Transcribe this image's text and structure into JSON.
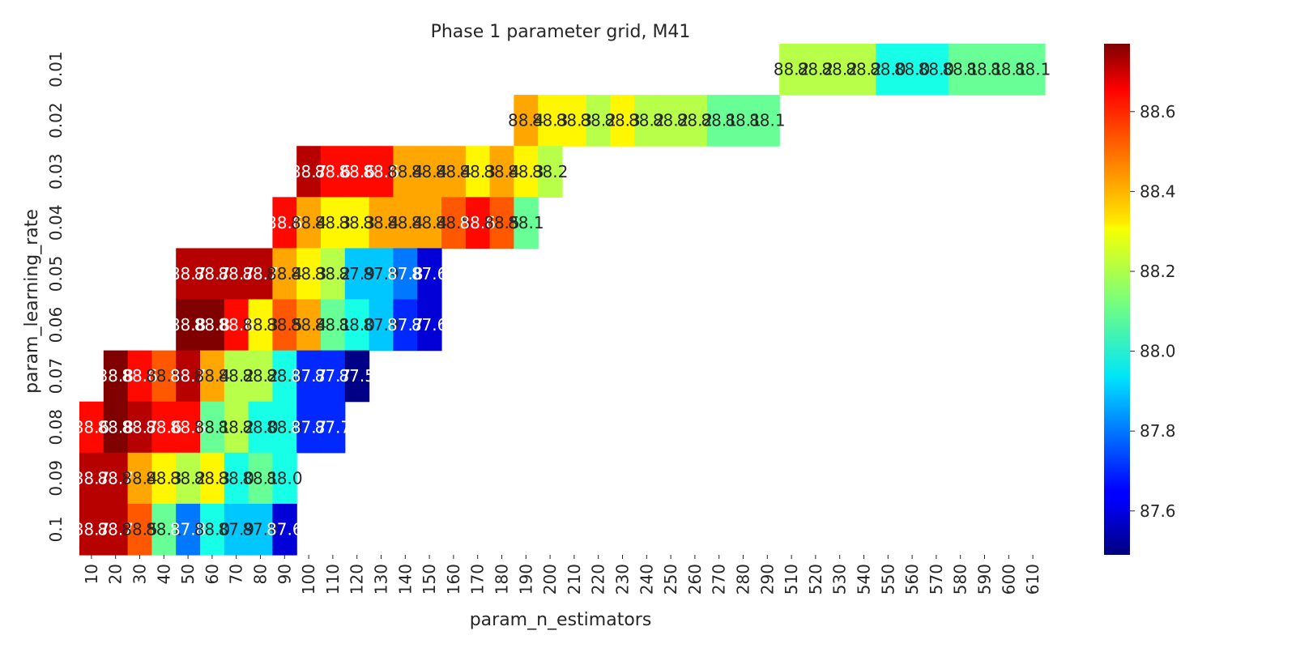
{
  "chart_data": {
    "type": "heatmap",
    "title": "Phase 1 parameter grid, M41",
    "xlabel": "param_n_estimators",
    "ylabel": "param_learning_rate",
    "x_categories": [
      "10",
      "20",
      "30",
      "40",
      "50",
      "60",
      "70",
      "80",
      "90",
      "100",
      "110",
      "120",
      "130",
      "140",
      "150",
      "160",
      "170",
      "180",
      "190",
      "200",
      "210",
      "220",
      "230",
      "240",
      "250",
      "260",
      "270",
      "280",
      "290",
      "510",
      "520",
      "530",
      "540",
      "550",
      "560",
      "570",
      "580",
      "590",
      "600",
      "610"
    ],
    "y_categories": [
      "0.01",
      "0.02",
      "0.03",
      "0.04",
      "0.05",
      "0.06",
      "0.07",
      "0.08",
      "0.09",
      "0.1"
    ],
    "colormap": "jet",
    "vmin": 87.49,
    "vmax": 88.77,
    "colorbar_ticks": [
      87.6,
      87.8,
      88.0,
      88.2,
      88.4,
      88.6
    ],
    "colorbar_tick_labels": [
      "87.6",
      "87.8",
      "88.0",
      "88.2",
      "88.4",
      "88.6"
    ],
    "values": [
      [
        null,
        null,
        null,
        null,
        null,
        null,
        null,
        null,
        null,
        null,
        null,
        null,
        null,
        null,
        null,
        null,
        null,
        null,
        null,
        null,
        null,
        null,
        null,
        null,
        null,
        null,
        null,
        null,
        null,
        88.2,
        88.2,
        88.2,
        88.2,
        88.0,
        88.0,
        88.0,
        88.1,
        88.1,
        88.1,
        88.1
      ],
      [
        null,
        null,
        null,
        null,
        null,
        null,
        null,
        null,
        null,
        null,
        null,
        null,
        null,
        null,
        null,
        null,
        null,
        null,
        88.4,
        88.3,
        88.3,
        88.2,
        88.3,
        88.2,
        88.2,
        88.2,
        88.1,
        88.1,
        88.1,
        null,
        null,
        null,
        null,
        null,
        null,
        null,
        null,
        null,
        null,
        null
      ],
      [
        null,
        null,
        null,
        null,
        null,
        null,
        null,
        null,
        null,
        88.7,
        88.6,
        88.6,
        88.6,
        88.4,
        88.4,
        88.4,
        88.3,
        88.4,
        88.3,
        88.2,
        null,
        null,
        null,
        null,
        null,
        null,
        null,
        null,
        null,
        null,
        null,
        null,
        null,
        null,
        null,
        null,
        null,
        null,
        null,
        null
      ],
      [
        null,
        null,
        null,
        null,
        null,
        null,
        null,
        null,
        88.6,
        88.4,
        88.3,
        88.3,
        88.4,
        88.4,
        88.4,
        88.5,
        88.6,
        88.5,
        88.1,
        null,
        null,
        null,
        null,
        null,
        null,
        null,
        null,
        null,
        null,
        null,
        null,
        null,
        null,
        null,
        null,
        null,
        null,
        null,
        null,
        null
      ],
      [
        null,
        null,
        null,
        null,
        88.7,
        88.7,
        88.7,
        88.7,
        88.4,
        88.3,
        88.2,
        87.9,
        87.9,
        87.8,
        87.6,
        null,
        null,
        null,
        null,
        null,
        null,
        null,
        null,
        null,
        null,
        null,
        null,
        null,
        null,
        null,
        null,
        null,
        null,
        null,
        null,
        null,
        null,
        null,
        null,
        null
      ],
      [
        null,
        null,
        null,
        null,
        88.8,
        88.8,
        88.6,
        88.3,
        88.5,
        88.4,
        88.1,
        88.0,
        87.9,
        87.7,
        87.6,
        null,
        null,
        null,
        null,
        null,
        null,
        null,
        null,
        null,
        null,
        null,
        null,
        null,
        null,
        null,
        null,
        null,
        null,
        null,
        null,
        null,
        null,
        null,
        null,
        null
      ],
      [
        null,
        88.8,
        88.6,
        88.5,
        88.7,
        88.4,
        88.2,
        88.2,
        88.0,
        87.7,
        87.7,
        87.5,
        null,
        null,
        null,
        null,
        null,
        null,
        null,
        null,
        null,
        null,
        null,
        null,
        null,
        null,
        null,
        null,
        null,
        null,
        null,
        null,
        null,
        null,
        null,
        null,
        null,
        null,
        null,
        null
      ],
      [
        88.6,
        88.8,
        88.7,
        88.6,
        88.6,
        88.1,
        88.2,
        88.0,
        88.0,
        87.7,
        87.7,
        null,
        null,
        null,
        null,
        null,
        null,
        null,
        null,
        null,
        null,
        null,
        null,
        null,
        null,
        null,
        null,
        null,
        null,
        null,
        null,
        null,
        null,
        null,
        null,
        null,
        null,
        null,
        null,
        null
      ],
      [
        88.7,
        88.7,
        88.4,
        88.3,
        88.2,
        88.3,
        88.0,
        88.1,
        88.0,
        null,
        null,
        null,
        null,
        null,
        null,
        null,
        null,
        null,
        null,
        null,
        null,
        null,
        null,
        null,
        null,
        null,
        null,
        null,
        null,
        null,
        null,
        null,
        null,
        null,
        null,
        null,
        null,
        null,
        null,
        null
      ],
      [
        88.7,
        88.7,
        88.5,
        88.1,
        87.8,
        88.0,
        87.9,
        87.9,
        87.6,
        null,
        null,
        null,
        null,
        null,
        null,
        null,
        null,
        null,
        null,
        null,
        null,
        null,
        null,
        null,
        null,
        null,
        null,
        null,
        null,
        null,
        null,
        null,
        null,
        null,
        null,
        null,
        null,
        null,
        null,
        null
      ]
    ]
  }
}
